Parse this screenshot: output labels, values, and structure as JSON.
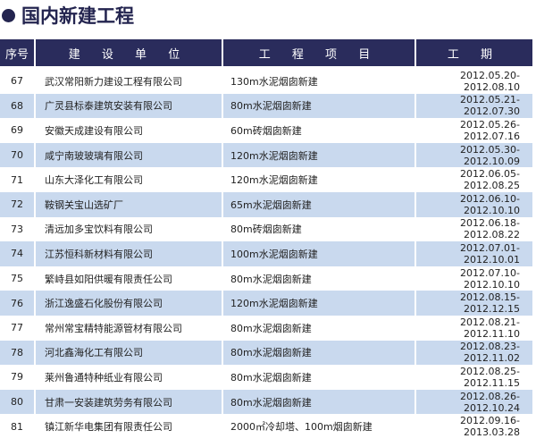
{
  "title": "国内新建工程",
  "headers": [
    "序号",
    "建 设 单 位",
    "工 程 项 目",
    "工 期"
  ],
  "rows": [
    [
      "67",
      "武汉常阳新力建设工程有限公司",
      "130m水泥烟囱新建",
      "2012.05.20-2012.08.10"
    ],
    [
      "68",
      "广灵县标泰建筑安装有限公司",
      "80m水泥烟囱新建",
      "2012.05.21-2012.07.30"
    ],
    [
      "69",
      "安徽天成建设有限公司",
      "60m砖烟囱新建",
      "2012.05.26-2012.07.16"
    ],
    [
      "70",
      "咸宁南玻玻璃有限公司",
      "120m水泥烟囱新建",
      "2012.05.30-2012.10.09"
    ],
    [
      "71",
      "山东大泽化工有限公司",
      "120m水泥烟囱新建",
      "2012.06.05-2012.08.25"
    ],
    [
      "72",
      "鞍钢关宝山选矿厂",
      "65m水泥烟囱新建",
      "2012.06.10-2012.10.10"
    ],
    [
      "73",
      "清远加多宝饮料有限公司",
      "80m砖烟囱新建",
      "2012.06.18-2012.08.22"
    ],
    [
      "74",
      "江苏恒科新材料有限公司",
      "100m水泥烟囱新建",
      "2012.07.01-2012.10.01"
    ],
    [
      "75",
      "繁峙县如阳供暖有限责任公司",
      "80m水泥烟囱新建",
      "2012.07.10-2012.10.10"
    ],
    [
      "76",
      "浙江逸盛石化股份有限公司",
      "120m水泥烟囱新建",
      "2012.08.15-2012.12.15"
    ],
    [
      "77",
      "常州常宝精特能源管材有限公司",
      "80m水泥烟囱新建",
      "2012.08.21-2012.11.10"
    ],
    [
      "78",
      "河北鑫海化工有限公司",
      "80m水泥烟囱新建",
      "2012.08.23-2012.11.02"
    ],
    [
      "79",
      "莱州鲁通特种纸业有限公司",
      "80m水泥烟囱新建",
      "2012.08.25-2012.11.15"
    ],
    [
      "80",
      "甘肃一安装建筑劳务有限公司",
      "80m水泥烟囱新建",
      "2012.08.26-2012.10.24"
    ],
    [
      "81",
      "镇江新华电集团有限责任公司",
      "2000㎡冷却塔、100m烟囱新建",
      "2012.09.16-2013.03.28"
    ]
  ]
}
